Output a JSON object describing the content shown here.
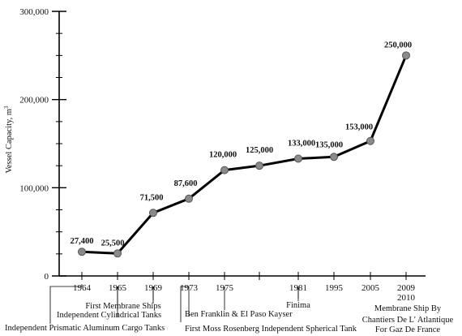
{
  "chart_data": {
    "type": "line",
    "title": "",
    "xlabel": "",
    "ylabel": "Vessel Capacity, m",
    "ylabel_superscript": "3",
    "ylim": [
      0,
      300000
    ],
    "yticks": [
      {
        "value": 0,
        "label": "0"
      },
      {
        "value": 100000,
        "label": "100,000"
      },
      {
        "value": 200000,
        "label": "200,000"
      },
      {
        "value": 300000,
        "label": "300,000"
      }
    ],
    "ytick_minor_step": 25000,
    "xticks": [
      {
        "x": 1964,
        "label": "1964"
      },
      {
        "x": 1965,
        "label": "1965"
      },
      {
        "x": 1969,
        "label": "1969"
      },
      {
        "x": 1973,
        "label": "1973"
      },
      {
        "x": 1975,
        "label": "1975"
      },
      {
        "x": 1978,
        "label": ""
      },
      {
        "x": 1981,
        "label": "1981"
      },
      {
        "x": 1995,
        "label": "1995"
      },
      {
        "x": 2005,
        "label": "2005"
      },
      {
        "x": 2009,
        "label": "2009"
      }
    ],
    "points": [
      {
        "x": 1964,
        "y": 27400,
        "label": "27,400"
      },
      {
        "x": 1965,
        "y": 25500,
        "label": "25,500"
      },
      {
        "x": 1969,
        "y": 71500,
        "label": "71,500"
      },
      {
        "x": 1973,
        "y": 87600,
        "label": "87,600"
      },
      {
        "x": 1975,
        "y": 120000,
        "label": "120,000"
      },
      {
        "x": 1978,
        "y": 125000,
        "label": "125,000"
      },
      {
        "x": 1981,
        "y": 133000,
        "label": "133,000"
      },
      {
        "x": 1995,
        "y": 135000,
        "label": "135,000"
      },
      {
        "x": 2005,
        "y": 153000,
        "label": "153,000"
      },
      {
        "x": 2010,
        "y": 250000,
        "label": "250,000"
      }
    ],
    "extra_x_label": "2010",
    "annotations": [
      {
        "x": 1964,
        "lines": [
          "Independent Prismatic Aluminum Cargo Tanks"
        ]
      },
      {
        "x": 1965,
        "lines": [
          "Independent Cylindrical Tanks"
        ]
      },
      {
        "x": 1969,
        "lines": [
          "First Membrane Ships"
        ]
      },
      {
        "x": 1973,
        "lines": [
          "Ben Franklin & El Paso Kayser",
          "First Moss Rosenberg Independent Spherical Tank"
        ]
      },
      {
        "x": 1981,
        "lines": [
          "Finima"
        ]
      },
      {
        "x": 2009,
        "lines": [
          "Membrane Ship By",
          "Chantiers De L' Atlantique",
          "For Gaz De France"
        ]
      }
    ],
    "colors": {
      "line": "#000000",
      "marker": "#8a8a8a",
      "marker_edge": "#555555"
    }
  }
}
